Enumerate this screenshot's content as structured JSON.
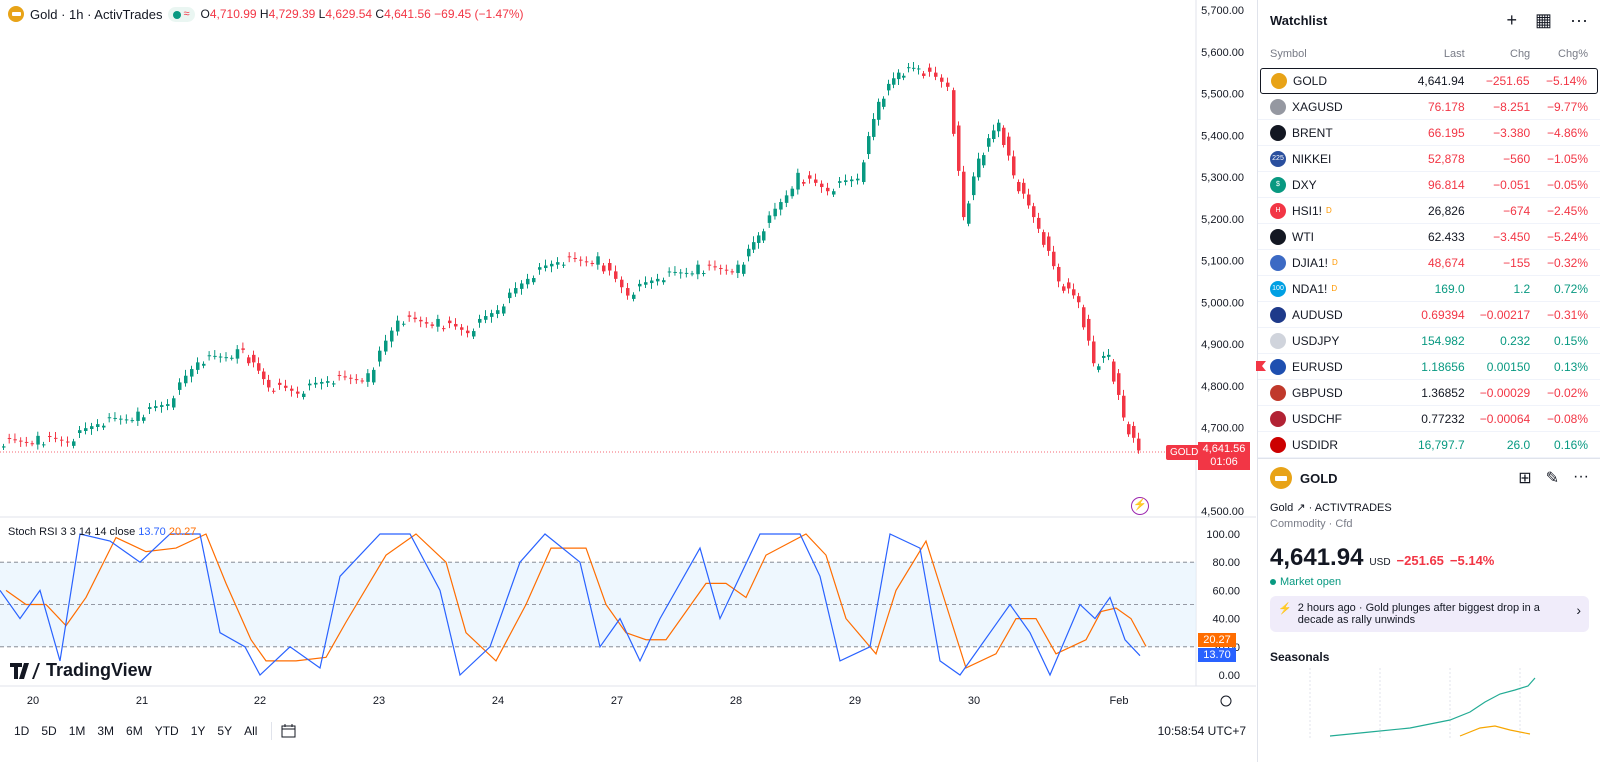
{
  "legend": {
    "title": "Gold · 1h · ActivTrades",
    "open_k": "O",
    "open": "4,710.99",
    "high_k": "H",
    "high": "4,729.39",
    "low_k": "L",
    "low": "4,629.54",
    "close_k": "C",
    "close": "4,641.56",
    "change": "−69.45 (−1.47%)"
  },
  "price_axis": [
    "5,700.00",
    "5,600.00",
    "5,500.00",
    "5,400.00",
    "5,300.00",
    "5,200.00",
    "5,100.00",
    "5,000.00",
    "4,900.00",
    "4,800.00",
    "4,700.00",
    "4,500.00"
  ],
  "rsi_axis": [
    "100.00",
    "80.00",
    "60.00",
    "40.00",
    "20.00",
    "0.00"
  ],
  "time_axis": [
    "20",
    "21",
    "22",
    "23",
    "24",
    "27",
    "28",
    "29",
    "30",
    "Feb"
  ],
  "last_price": {
    "symbol": "GOLD",
    "price": "4,641.56",
    "countdown": "01:06"
  },
  "rsi": {
    "label": "Stoch RSI 3 3 14 14 close",
    "k": "13.70",
    "d": "20.27"
  },
  "brand": "TradingView",
  "bottom_bar": {
    "ranges": [
      "1D",
      "5D",
      "1M",
      "3M",
      "6M",
      "YTD",
      "1Y",
      "5Y",
      "All"
    ],
    "clock": "10:58:54 UTC+7"
  },
  "watchlist": {
    "title": "Watchlist",
    "columns": {
      "symbol": "Symbol",
      "last": "Last",
      "chg": "Chg",
      "pct": "Chg%"
    },
    "rows": [
      {
        "symbol": "GOLD",
        "last": "4,641.94",
        "chg": "−251.65",
        "pct": "−5.14%"
      },
      {
        "symbol": "XAGUSD",
        "last": "76.178",
        "chg": "−8.251",
        "pct": "−9.77%"
      },
      {
        "symbol": "BRENT",
        "last": "66.195",
        "chg": "−3.380",
        "pct": "−4.86%"
      },
      {
        "symbol": "NIKKEI",
        "last": "52,878",
        "chg": "−560",
        "pct": "−1.05%"
      },
      {
        "symbol": "DXY",
        "last": "96.814",
        "chg": "−0.051",
        "pct": "−0.05%"
      },
      {
        "symbol": "HSI1!",
        "last": "26,826",
        "chg": "−674",
        "pct": "−2.45%"
      },
      {
        "symbol": "WTI",
        "last": "62.433",
        "chg": "−3.450",
        "pct": "−5.24%"
      },
      {
        "symbol": "DJIA1!",
        "last": "48,674",
        "chg": "−155",
        "pct": "−0.32%"
      },
      {
        "symbol": "NDA1!",
        "last": "169.0",
        "chg": "1.2",
        "pct": "0.72%"
      },
      {
        "symbol": "AUDUSD",
        "last": "0.69394",
        "chg": "−0.00217",
        "pct": "−0.31%"
      },
      {
        "symbol": "USDJPY",
        "last": "154.982",
        "chg": "0.232",
        "pct": "0.15%"
      },
      {
        "symbol": "EURUSD",
        "last": "1.18656",
        "chg": "0.00150",
        "pct": "0.13%"
      },
      {
        "symbol": "GBPUSD",
        "last": "1.36852",
        "chg": "−0.00029",
        "pct": "−0.02%"
      },
      {
        "symbol": "USDCHF",
        "last": "0.77232",
        "chg": "−0.00064",
        "pct": "−0.08%"
      },
      {
        "symbol": "USDIDR",
        "last": "16,797.7",
        "chg": "26.0",
        "pct": "0.16%"
      }
    ]
  },
  "detail": {
    "name": "GOLD",
    "subtitle": "Gold",
    "exchange": "· ACTIVTRADES",
    "category": "Commodity · Cfd",
    "price": "4,641.94",
    "currency": "USD",
    "change": "−251.65",
    "change_pct": "−5.14%",
    "market_status": "Market open",
    "news_time": "2 hours ago",
    "news_text": "Gold plunges after biggest drop in a decade as rally unwinds",
    "seasonals": "Seasonals"
  },
  "colors": {
    "up": "#089981",
    "down": "#f23645",
    "k_line": "#2962ff",
    "d_line": "#ff6d00"
  }
}
